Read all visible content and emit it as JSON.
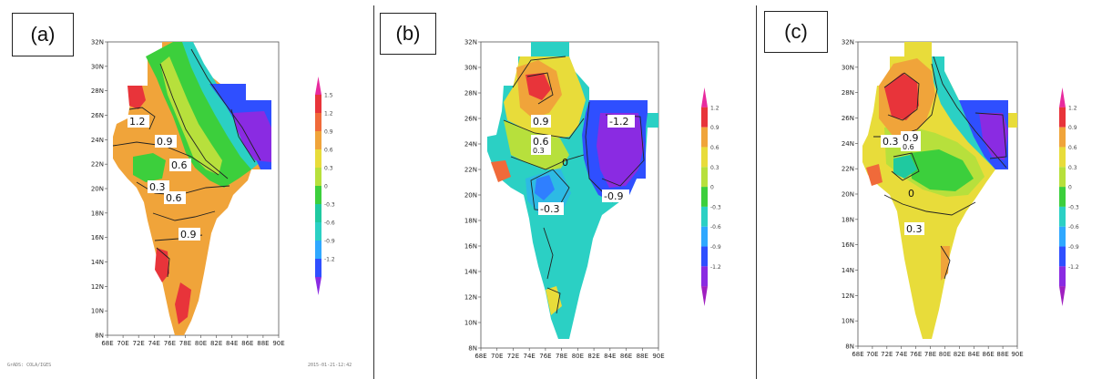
{
  "panels": [
    {
      "tag": "(a)",
      "footer_left": "GrADS: COLA/IGES",
      "footer_right": "2015-01-21-12:42",
      "colorbar_labels": [
        "1.5",
        "1.2",
        "0.9",
        "0.6",
        "0.3",
        "0",
        "-0.3",
        "-0.6",
        "-0.9",
        "-1.2"
      ]
    },
    {
      "tag": "(b)",
      "colorbar_labels": [
        "1.2",
        "0.9",
        "0.6",
        "0.3",
        "0",
        "-0.3",
        "-0.6",
        "-0.9",
        "-1.2"
      ]
    },
    {
      "tag": "(c)",
      "colorbar_labels": [
        "1.2",
        "0.9",
        "0.6",
        "0.3",
        "0",
        "-0.3",
        "-0.6",
        "-0.9",
        "-1.2"
      ]
    }
  ],
  "lat_labels": [
    "32N",
    "30N",
    "28N",
    "26N",
    "24N",
    "22N",
    "20N",
    "18N",
    "16N",
    "14N",
    "12N",
    "10N",
    "8N"
  ],
  "lon_labels": [
    "68E",
    "70E",
    "72E",
    "74E",
    "76E",
    "78E",
    "80E",
    "82E",
    "84E",
    "86E",
    "88E",
    "90E"
  ],
  "contour_labels": {
    "a": [
      "1.2",
      "0.9",
      "0.6",
      "0.3",
      "0.6",
      "0.9"
    ],
    "b": [
      "0.9",
      "0.6",
      "0.3",
      "0",
      "-0.3",
      "-1.2",
      "-0.9"
    ],
    "c": [
      "0.3",
      "0.9",
      "0.6",
      "0",
      "0.3"
    ]
  },
  "palette": {
    "purple": "#8a2be2",
    "blue": "#2f4fff",
    "lightblue": "#2fa8ff",
    "cyan": "#2bd0c4",
    "teal": "#1fc9a0",
    "green": "#3ccf3c",
    "yellowgreen": "#b7e03c",
    "yellow": "#e8dc3a",
    "orange": "#f0a43a",
    "redorange": "#f06a3a",
    "red": "#e8343a",
    "magenta": "#e82a9e"
  }
}
